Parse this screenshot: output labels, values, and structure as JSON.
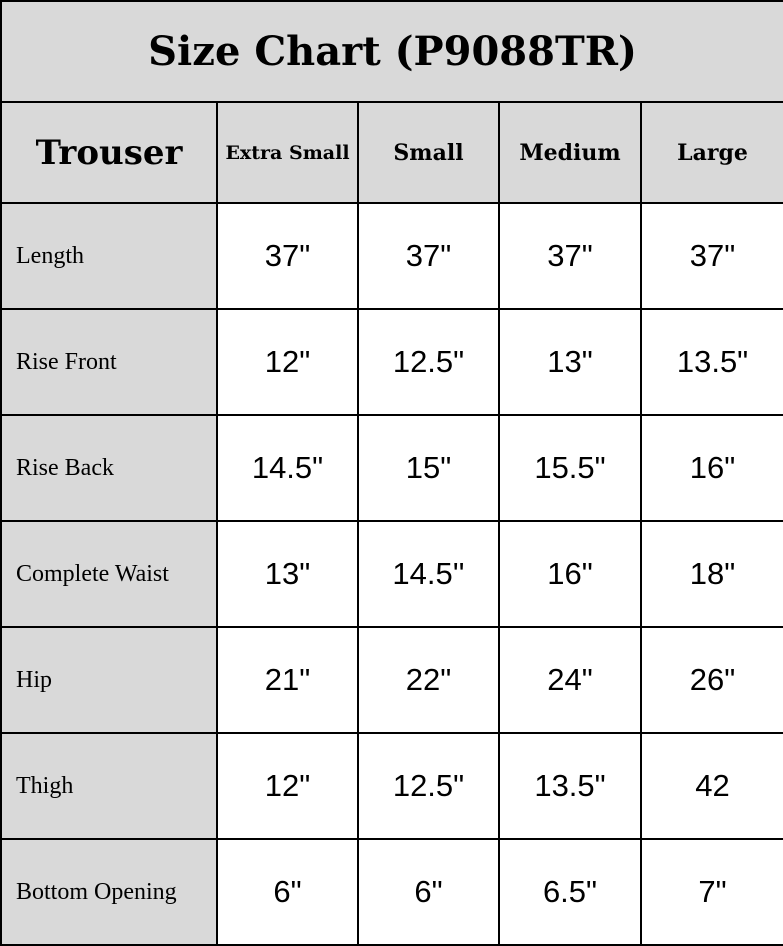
{
  "title": "Size Chart (P9088TR)",
  "header": {
    "corner": "Trouser",
    "sizes": [
      "Extra Small",
      "Small",
      "Medium",
      "Large"
    ]
  },
  "rows": [
    {
      "label": "Length",
      "values": [
        "37\"",
        "37\"",
        "37\"",
        "37\""
      ]
    },
    {
      "label": "Rise Front",
      "values": [
        "12\"",
        "12.5\"",
        "13\"",
        "13.5\""
      ]
    },
    {
      "label": "Rise Back",
      "values": [
        "14.5\"",
        "15\"",
        "15.5\"",
        "16\""
      ]
    },
    {
      "label": "Complete Waist",
      "values": [
        "13\"",
        "14.5''",
        "16\"",
        "18\""
      ]
    },
    {
      "label": "Hip",
      "values": [
        "21\"",
        "22\"",
        "24\"",
        "26\""
      ]
    },
    {
      "label": "Thigh",
      "values": [
        "12\"",
        "12.5\"",
        "13.5\"",
        "42"
      ]
    },
    {
      "label": "Bottom Opening",
      "values": [
        "6\"",
        "6\"",
        "6.5\"",
        "7\""
      ]
    }
  ]
}
